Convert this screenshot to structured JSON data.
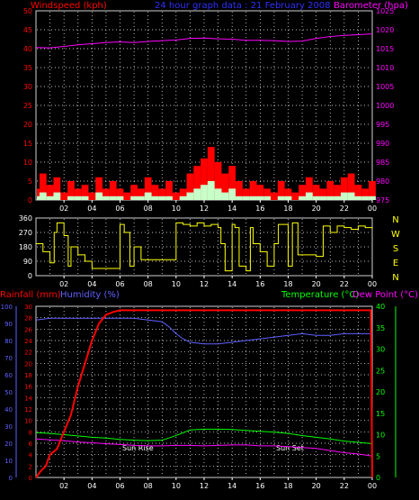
{
  "chart_data": [
    {
      "type": "line",
      "title": "24 hour graph data : 21 February 2008",
      "left_axis_label": "Windspeed (kph)",
      "right_axis_label": "Barometer (hpa)",
      "left_ticks": [
        "0",
        "5",
        "10",
        "15",
        "20",
        "25",
        "30",
        "35",
        "40",
        "45",
        "50"
      ],
      "right_ticks": [
        "975",
        "980",
        "985",
        "990",
        "995",
        "1000",
        "1005",
        "1010",
        "1015",
        "1020",
        "1025"
      ],
      "x_ticks": [
        "02",
        "04",
        "06",
        "08",
        "10",
        "12",
        "14",
        "16",
        "18",
        "20",
        "22",
        "00"
      ],
      "ylim_left": [
        0,
        50
      ],
      "ylim_right": [
        975,
        1025
      ],
      "grid": true,
      "series": [
        {
          "name": "Barometer",
          "axis": "right",
          "color": "#ff00ff",
          "x": [
            0,
            1,
            2,
            3,
            4,
            5,
            6,
            7,
            8,
            9,
            10,
            11,
            12,
            13,
            14,
            15,
            16,
            17,
            18,
            19,
            20,
            21,
            22,
            23,
            24
          ],
          "values": [
            1015.3,
            1015.2,
            1015.6,
            1016.0,
            1016.3,
            1016.6,
            1016.8,
            1016.6,
            1016.9,
            1017.1,
            1017.3,
            1017.7,
            1017.8,
            1017.6,
            1017.5,
            1017.2,
            1017.2,
            1017.1,
            1016.9,
            1017.0,
            1017.7,
            1018.2,
            1018.5,
            1018.7,
            1018.9
          ]
        },
        {
          "name": "Wind gust",
          "axis": "left",
          "color": "#ff0000",
          "x": [
            0,
            0.5,
            1,
            1.5,
            2,
            2.5,
            3,
            3.5,
            4,
            4.5,
            5,
            5.5,
            6,
            6.5,
            7,
            7.5,
            8,
            8.5,
            9,
            9.5,
            10,
            10.5,
            11,
            11.5,
            12,
            12.5,
            13,
            13.5,
            14,
            14.5,
            15,
            15.5,
            16,
            16.5,
            17,
            17.5,
            18,
            18.5,
            19,
            19.5,
            20,
            20.5,
            21,
            21.5,
            22,
            22.5,
            23,
            23.5,
            24
          ],
          "values": [
            3,
            7,
            4,
            6,
            2,
            5,
            3,
            4,
            2,
            6,
            3,
            5,
            3,
            2,
            4,
            3,
            6,
            4,
            3,
            5,
            2,
            3,
            7,
            9,
            11,
            14,
            10,
            7,
            9,
            5,
            3,
            5,
            4,
            3,
            2,
            5,
            3,
            2,
            4,
            6,
            4,
            3,
            5,
            4,
            6,
            7,
            4,
            3,
            5
          ]
        },
        {
          "name": "Wind average",
          "axis": "left",
          "color": "#c8ffc8",
          "x": [
            0,
            0.5,
            1,
            1.5,
            2,
            2.5,
            3,
            3.5,
            4,
            4.5,
            5,
            5.5,
            6,
            6.5,
            7,
            7.5,
            8,
            8.5,
            9,
            9.5,
            10,
            10.5,
            11,
            11.5,
            12,
            12.5,
            13,
            13.5,
            14,
            14.5,
            15,
            15.5,
            16,
            16.5,
            17,
            17.5,
            18,
            18.5,
            19,
            19.5,
            20,
            20.5,
            21,
            21.5,
            22,
            22.5,
            23,
            23.5,
            24
          ],
          "values": [
            1,
            2,
            1,
            2,
            0,
            1,
            1,
            1,
            0,
            2,
            1,
            1,
            1,
            0,
            1,
            1,
            2,
            1,
            1,
            1,
            0,
            1,
            2,
            3,
            4,
            5,
            3,
            2,
            3,
            1,
            1,
            1,
            1,
            1,
            0,
            1,
            1,
            0,
            1,
            2,
            1,
            1,
            1,
            1,
            2,
            2,
            1,
            1,
            1
          ]
        }
      ]
    },
    {
      "type": "line",
      "title": "",
      "left_ticks": [
        "0",
        "90",
        "180",
        "270",
        "360"
      ],
      "direction_labels": [
        "N",
        "W",
        "S",
        "E",
        "N"
      ],
      "x_ticks": [
        "02",
        "04",
        "06",
        "08",
        "10",
        "12",
        "14",
        "16",
        "18",
        "20",
        "22",
        "00"
      ],
      "ylim": [
        0,
        360
      ],
      "grid": true,
      "series": [
        {
          "name": "Wind direction",
          "color": "#ffff00",
          "x": [
            0,
            0.5,
            1,
            1.3,
            1.5,
            2,
            2.3,
            2.5,
            3,
            3.5,
            4,
            4.5,
            5,
            5.5,
            6,
            6.3,
            6.7,
            7,
            7.5,
            8,
            8.5,
            9,
            9.5,
            10,
            10.5,
            11,
            11.5,
            12,
            12.5,
            13,
            13.2,
            13.5,
            14,
            14.2,
            14.5,
            15,
            15.3,
            15.5,
            16,
            16.5,
            17,
            17.3,
            17.5,
            18,
            18.3,
            18.7,
            19,
            19.5,
            20,
            20.5,
            21,
            21.5,
            22,
            22.5,
            23,
            23.5,
            24
          ],
          "values": [
            200,
            150,
            80,
            270,
            330,
            250,
            60,
            180,
            130,
            90,
            45,
            45,
            45,
            45,
            320,
            270,
            60,
            180,
            100,
            100,
            100,
            100,
            100,
            330,
            320,
            310,
            330,
            310,
            320,
            300,
            200,
            30,
            320,
            300,
            60,
            30,
            300,
            200,
            150,
            60,
            200,
            320,
            320,
            60,
            330,
            130,
            130,
            130,
            120,
            310,
            270,
            310,
            300,
            290,
            310,
            300,
            290
          ]
        }
      ]
    },
    {
      "type": "line",
      "title": "",
      "left_axis_label": "Rainfall (mm)",
      "humidity_axis_label": "Humidity (%)",
      "right_axis_label": "Temperature (°C)",
      "dewpoint_axis_label": "Dew Point (°C)",
      "rain_ticks": [
        "0",
        "2",
        "4",
        "6",
        "8",
        "10",
        "12",
        "14",
        "16",
        "18",
        "20",
        "22",
        "24",
        "26",
        "28",
        "30"
      ],
      "humidity_ticks": [
        "0",
        "10",
        "20",
        "30",
        "40",
        "50",
        "60",
        "70",
        "80",
        "90",
        "100"
      ],
      "temp_ticks": [
        "0",
        "5",
        "10",
        "15",
        "20",
        "25",
        "30",
        "35",
        "40"
      ],
      "x_ticks": [
        "02",
        "04",
        "06",
        "08",
        "10",
        "12",
        "14",
        "16",
        "18",
        "20",
        "22",
        "00"
      ],
      "annotations": [
        "Sun Rise",
        "Sun Set"
      ],
      "ylim_rain": [
        0,
        30
      ],
      "ylim_temp": [
        0,
        40
      ],
      "grid": true,
      "series": [
        {
          "name": "Rainfall",
          "axis": "rain",
          "color": "#ff0000",
          "x": [
            0,
            0.3,
            0.7,
            1,
            1.5,
            2,
            2.5,
            3,
            3.5,
            4,
            4.5,
            5,
            5.5,
            6,
            7,
            8,
            10,
            12,
            14,
            16,
            18,
            20,
            22,
            23.9,
            24
          ],
          "values": [
            0,
            1,
            2,
            4,
            5,
            8,
            11,
            16,
            20,
            24,
            27,
            28.5,
            29,
            29.3,
            29.3,
            29.3,
            29.3,
            29.3,
            29.3,
            29.3,
            29.3,
            29.3,
            29.3,
            29.3,
            0
          ]
        },
        {
          "name": "Humidity",
          "axis": "humidity",
          "color": "#6060ff",
          "x": [
            0,
            1,
            2,
            3,
            4,
            5,
            6,
            7,
            8,
            9,
            9.5,
            10,
            10.5,
            11,
            12,
            13,
            14,
            15,
            16,
            17,
            18,
            19,
            20,
            21,
            22,
            23,
            24
          ],
          "values": [
            92,
            93,
            93,
            93,
            93,
            93,
            93,
            93,
            92,
            91,
            88,
            84,
            81,
            79,
            78,
            78,
            79,
            80,
            81,
            82,
            83,
            84,
            83,
            83,
            84,
            84,
            84
          ]
        },
        {
          "name": "Temperature",
          "axis": "temp",
          "color": "#00ff00",
          "x": [
            0,
            1,
            2,
            3,
            4,
            5,
            6,
            7,
            8,
            9,
            10,
            11,
            12,
            13,
            14,
            15,
            16,
            17,
            18,
            19,
            20,
            21,
            22,
            23,
            24
          ],
          "values": [
            10.5,
            10.3,
            10.0,
            9.7,
            9.4,
            9.2,
            8.9,
            8.7,
            8.6,
            8.7,
            9.8,
            11.1,
            11.3,
            11.3,
            11.2,
            11.0,
            10.8,
            10.6,
            10.3,
            9.8,
            9.4,
            9.0,
            8.5,
            8.2,
            7.9
          ]
        },
        {
          "name": "Dew Point",
          "axis": "temp",
          "color": "#ff00ff",
          "x": [
            0,
            1,
            2,
            3,
            4,
            5,
            6,
            7,
            8,
            9,
            10,
            11,
            12,
            13,
            14,
            15,
            16,
            17,
            18,
            19,
            20,
            21,
            22,
            23,
            24
          ],
          "values": [
            9.0,
            8.8,
            8.6,
            8.3,
            8.1,
            7.9,
            7.7,
            7.5,
            7.4,
            7.4,
            7.5,
            7.5,
            7.4,
            7.5,
            7.6,
            7.6,
            7.4,
            7.4,
            7.2,
            7.0,
            6.8,
            6.3,
            5.8,
            5.5,
            5.0
          ]
        }
      ]
    }
  ]
}
